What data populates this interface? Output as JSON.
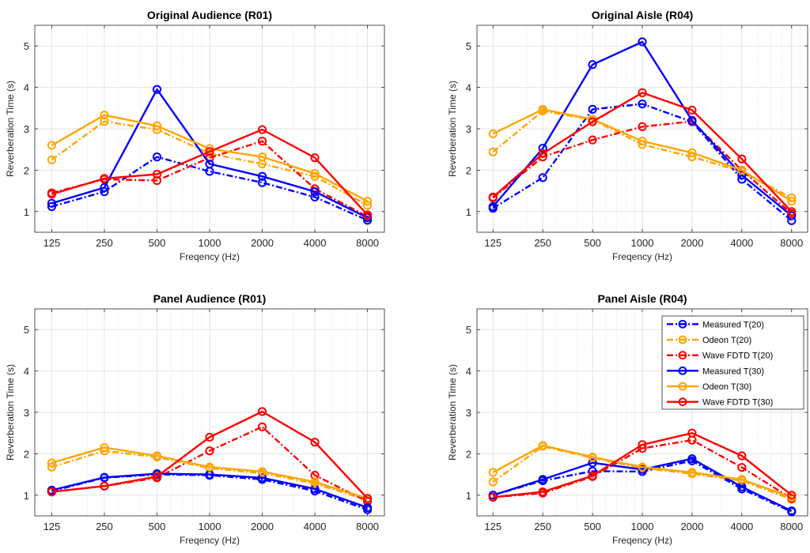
{
  "chart_data": [
    {
      "type": "line",
      "title": "Original Audience (R01)",
      "xlabel": "Freqency (Hz)",
      "ylabel": "Reverberation Time (s)",
      "x": [
        125,
        250,
        500,
        1000,
        2000,
        4000,
        8000
      ],
      "x_tick_labels": [
        "125",
        "250",
        "500",
        "1000",
        "2000",
        "4000",
        "8000"
      ],
      "y_ticks": [
        1,
        2,
        3,
        4,
        5
      ],
      "xlim": [
        100,
        10000
      ],
      "ylim": [
        0.5,
        5.5
      ],
      "x_scale": "log",
      "grid": true,
      "series": [
        {
          "name": "Measured T(20)",
          "style": "dash-dot",
          "color": "#0000ff",
          "values": [
            1.12,
            1.48,
            2.32,
            1.97,
            1.7,
            1.35,
            0.79
          ]
        },
        {
          "name": "Odeon T(20)",
          "style": "dash-dot",
          "color": "#ffa500",
          "values": [
            2.25,
            3.18,
            2.98,
            2.4,
            2.15,
            1.85,
            1.15
          ]
        },
        {
          "name": "Wave FDTD T(20)",
          "style": "dash-dot",
          "color": "#ff0000",
          "values": [
            1.45,
            1.78,
            1.75,
            2.3,
            2.7,
            1.55,
            0.88
          ]
        },
        {
          "name": "Measured T(30)",
          "style": "solid",
          "color": "#0000ff",
          "values": [
            1.2,
            1.58,
            3.95,
            2.15,
            1.85,
            1.48,
            0.85
          ]
        },
        {
          "name": "Odeon T(30)",
          "style": "solid",
          "color": "#ffa500",
          "values": [
            2.6,
            3.33,
            3.07,
            2.52,
            2.32,
            1.92,
            1.25
          ]
        },
        {
          "name": "Wave FDTD T(30)",
          "style": "solid",
          "color": "#ff0000",
          "values": [
            1.42,
            1.8,
            1.9,
            2.45,
            2.98,
            2.3,
            0.92
          ]
        }
      ]
    },
    {
      "type": "line",
      "title": "Original Aisle (R04)",
      "xlabel": "Freqency (Hz)",
      "ylabel": "Reverberation Time (s)",
      "x": [
        125,
        250,
        500,
        1000,
        2000,
        4000,
        8000
      ],
      "x_tick_labels": [
        "125",
        "250",
        "500",
        "1000",
        "2000",
        "4000",
        "8000"
      ],
      "y_ticks": [
        1,
        2,
        3,
        4,
        5
      ],
      "xlim": [
        100,
        10000
      ],
      "ylim": [
        0.5,
        5.5
      ],
      "x_scale": "log",
      "grid": true,
      "series": [
        {
          "name": "Measured T(20)",
          "style": "dash-dot",
          "color": "#0000ff",
          "values": [
            1.08,
            1.82,
            3.47,
            3.6,
            3.17,
            1.78,
            0.78
          ]
        },
        {
          "name": "Odeon T(20)",
          "style": "dash-dot",
          "color": "#ffa500",
          "values": [
            2.44,
            3.43,
            3.22,
            2.62,
            2.32,
            1.97,
            1.33
          ]
        },
        {
          "name": "Wave FDTD T(20)",
          "style": "dash-dot",
          "color": "#ff0000",
          "values": [
            1.33,
            2.32,
            2.73,
            3.05,
            3.18,
            2.0,
            0.95
          ]
        },
        {
          "name": "Measured T(30)",
          "style": "solid",
          "color": "#0000ff",
          "values": [
            1.12,
            2.53,
            4.55,
            5.1,
            3.2,
            1.88,
            0.9
          ]
        },
        {
          "name": "Odeon T(30)",
          "style": "solid",
          "color": "#ffa500",
          "values": [
            2.88,
            3.47,
            3.23,
            2.7,
            2.42,
            2.0,
            1.25
          ]
        },
        {
          "name": "Wave FDTD T(30)",
          "style": "solid",
          "color": "#ff0000",
          "values": [
            1.35,
            2.4,
            3.17,
            3.87,
            3.45,
            2.27,
            1.0
          ]
        }
      ]
    },
    {
      "type": "line",
      "title": "Panel Audience (R01)",
      "xlabel": "Freqency (Hz)",
      "ylabel": "Reverberation Time (s)",
      "x": [
        125,
        250,
        500,
        1000,
        2000,
        4000,
        8000
      ],
      "x_tick_labels": [
        "125",
        "250",
        "500",
        "1000",
        "2000",
        "4000",
        "8000"
      ],
      "y_ticks": [
        1,
        2,
        3,
        4,
        5
      ],
      "xlim": [
        100,
        10000
      ],
      "ylim": [
        0.5,
        5.5
      ],
      "x_scale": "log",
      "grid": true,
      "series": [
        {
          "name": "Measured T(20)",
          "style": "dash-dot",
          "color": "#0000ff",
          "values": [
            1.1,
            1.42,
            1.5,
            1.48,
            1.38,
            1.1,
            0.65
          ]
        },
        {
          "name": "Odeon T(20)",
          "style": "dash-dot",
          "color": "#ffa500",
          "values": [
            1.68,
            2.07,
            1.92,
            1.65,
            1.53,
            1.28,
            0.88
          ]
        },
        {
          "name": "Wave FDTD T(20)",
          "style": "dash-dot",
          "color": "#ff0000",
          "values": [
            1.08,
            1.22,
            1.42,
            2.07,
            2.65,
            1.48,
            0.85
          ]
        },
        {
          "name": "Measured T(30)",
          "style": "solid",
          "color": "#0000ff",
          "values": [
            1.12,
            1.43,
            1.52,
            1.5,
            1.42,
            1.15,
            0.7
          ]
        },
        {
          "name": "Odeon T(30)",
          "style": "solid",
          "color": "#ffa500",
          "values": [
            1.78,
            2.15,
            1.95,
            1.68,
            1.57,
            1.32,
            0.92
          ]
        },
        {
          "name": "Wave FDTD T(30)",
          "style": "solid",
          "color": "#ff0000",
          "values": [
            1.08,
            1.22,
            1.45,
            2.4,
            3.02,
            2.28,
            0.92
          ]
        }
      ]
    },
    {
      "type": "line",
      "title": "Panel Aisle (R04)",
      "xlabel": "Freqency (Hz)",
      "ylabel": "Reverberation Time (s)",
      "x": [
        125,
        250,
        500,
        1000,
        2000,
        4000,
        8000
      ],
      "x_tick_labels": [
        "125",
        "250",
        "500",
        "1000",
        "2000",
        "4000",
        "8000"
      ],
      "y_ticks": [
        1,
        2,
        3,
        4,
        5
      ],
      "xlim": [
        100,
        10000
      ],
      "ylim": [
        0.5,
        5.5
      ],
      "x_scale": "log",
      "grid": true,
      "legend_position": "top-right",
      "series": [
        {
          "name": "Measured T(20)",
          "style": "dash-dot",
          "color": "#0000ff",
          "values": [
            1.0,
            1.35,
            1.58,
            1.57,
            1.83,
            1.15,
            0.6
          ]
        },
        {
          "name": "Odeon T(20)",
          "style": "dash-dot",
          "color": "#ffa500",
          "values": [
            1.32,
            2.18,
            1.9,
            1.65,
            1.52,
            1.35,
            0.9
          ]
        },
        {
          "name": "Wave FDTD T(20)",
          "style": "dash-dot",
          "color": "#ff0000",
          "values": [
            0.95,
            1.05,
            1.45,
            2.13,
            2.33,
            1.67,
            0.92
          ]
        },
        {
          "name": "Measured T(30)",
          "style": "solid",
          "color": "#0000ff",
          "values": [
            1.0,
            1.38,
            1.78,
            1.62,
            1.88,
            1.2,
            0.62
          ]
        },
        {
          "name": "Odeon T(30)",
          "style": "solid",
          "color": "#ffa500",
          "values": [
            1.55,
            2.2,
            1.92,
            1.68,
            1.55,
            1.38,
            0.95
          ]
        },
        {
          "name": "Wave FDTD T(30)",
          "style": "solid",
          "color": "#ff0000",
          "values": [
            0.95,
            1.08,
            1.47,
            2.22,
            2.5,
            1.95,
            1.0
          ]
        }
      ]
    }
  ]
}
